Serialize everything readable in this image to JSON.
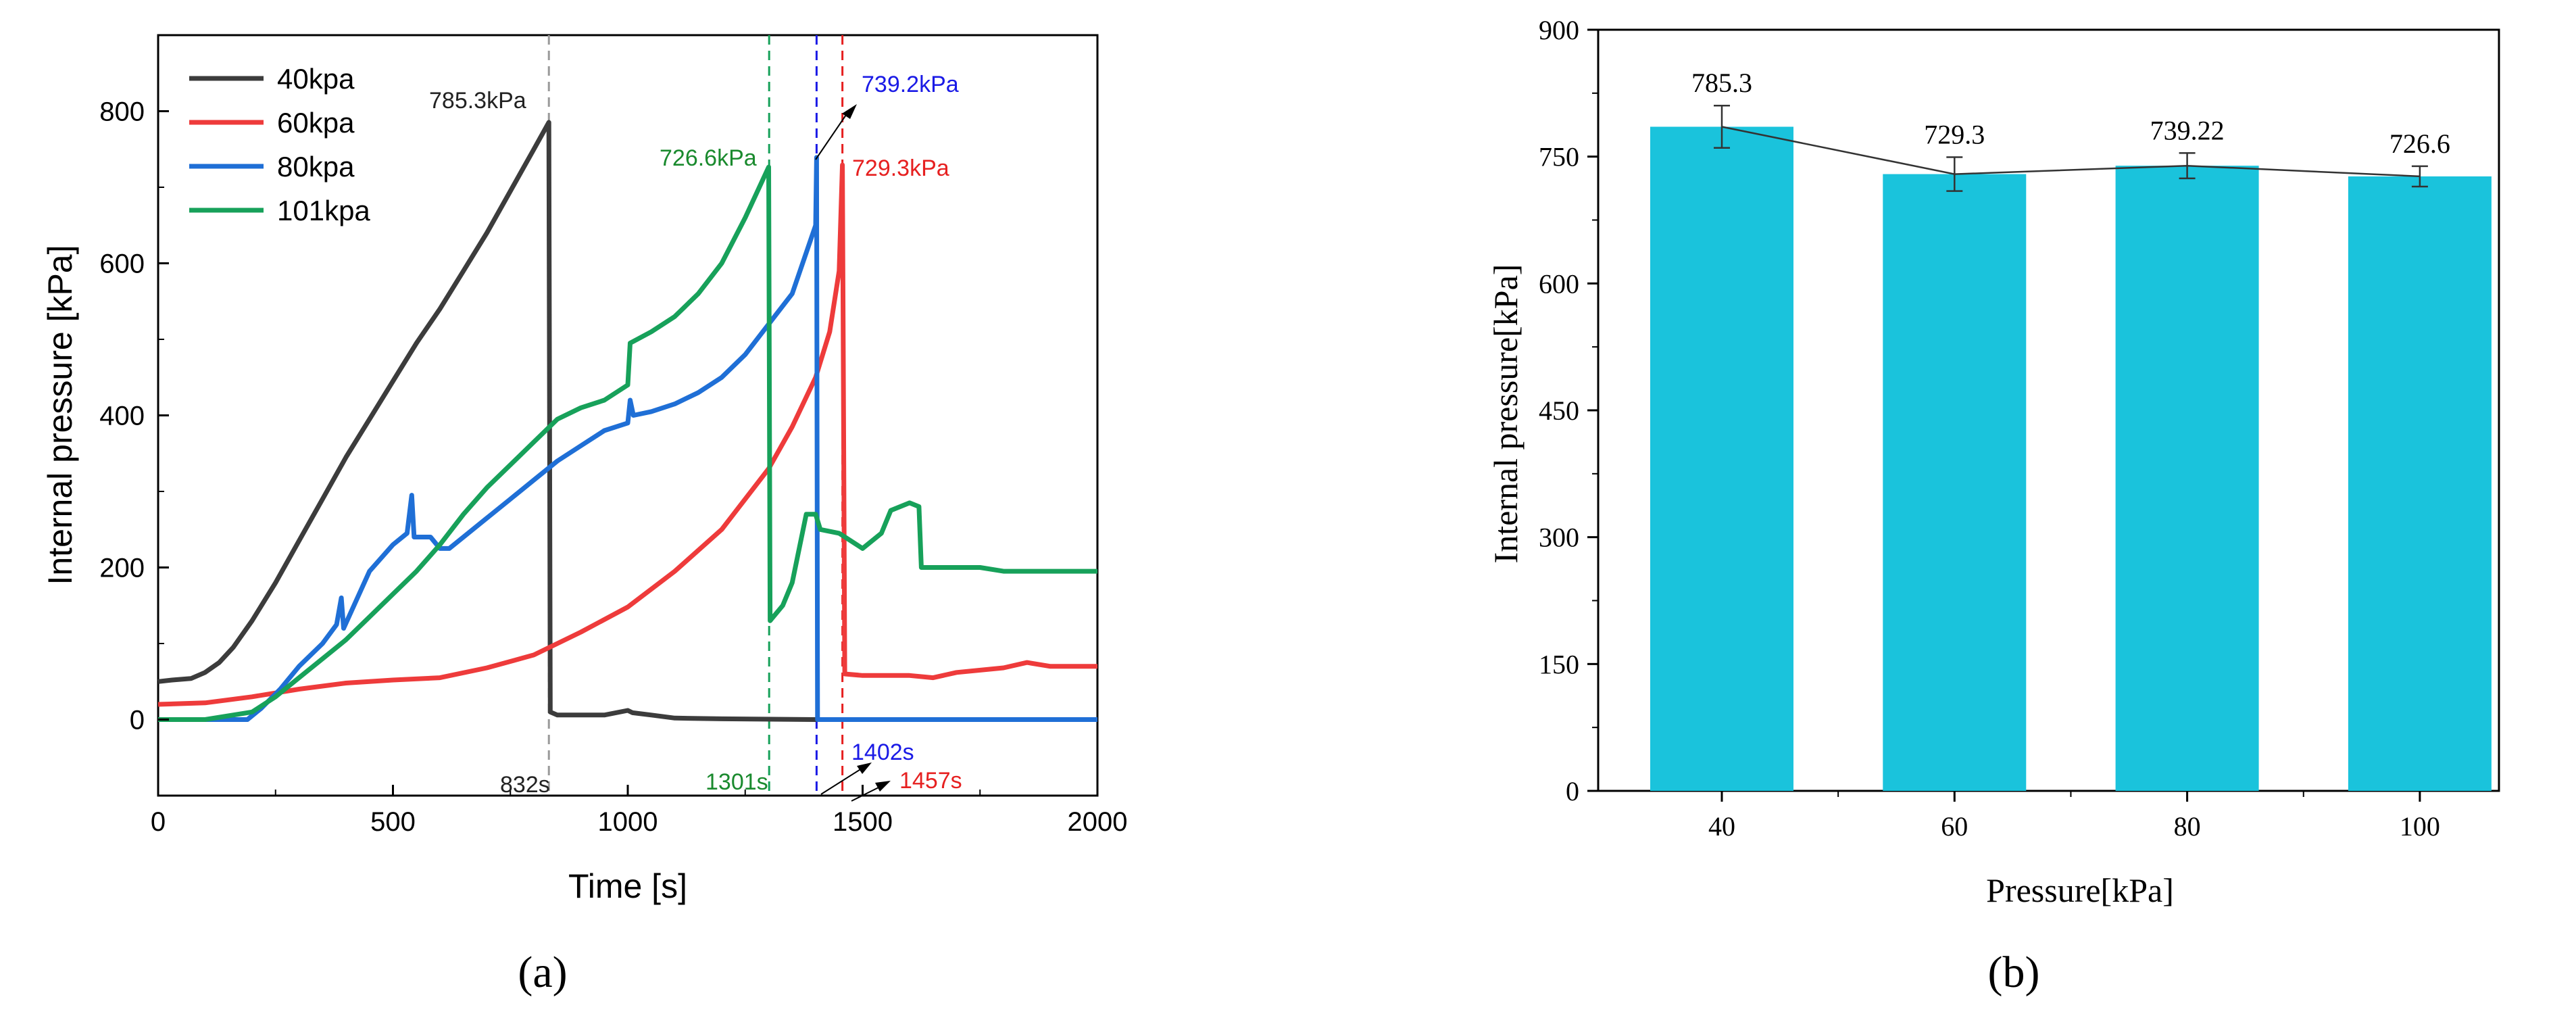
{
  "chart_data": [
    {
      "panel": "a",
      "type": "line",
      "xlabel": "Time [s]",
      "ylabel": "Internal pressure [kPa]",
      "xlim": [
        0,
        2000
      ],
      "ylim": [
        -100,
        900
      ],
      "xticks": [
        0,
        500,
        1000,
        1500,
        2000
      ],
      "yticks": [
        0,
        200,
        400,
        600,
        800
      ],
      "legend_position": "top-left",
      "series": [
        {
          "name": "40kpa",
          "color": "#3c3c3c",
          "points": [
            [
              0,
              50
            ],
            [
              30,
              52
            ],
            [
              70,
              54
            ],
            [
              100,
              62
            ],
            [
              130,
              75
            ],
            [
              160,
              95
            ],
            [
              200,
              130
            ],
            [
              250,
              180
            ],
            [
              300,
              235
            ],
            [
              350,
              290
            ],
            [
              400,
              345
            ],
            [
              450,
              395
            ],
            [
              500,
              445
            ],
            [
              550,
              495
            ],
            [
              600,
              540
            ],
            [
              650,
              590
            ],
            [
              700,
              640
            ],
            [
              750,
              695
            ],
            [
              800,
              750
            ],
            [
              832,
              785.3
            ],
            [
              835,
              10
            ],
            [
              850,
              6
            ],
            [
              900,
              6
            ],
            [
              950,
              6
            ],
            [
              1000,
              12
            ],
            [
              1010,
              9
            ],
            [
              1050,
              6
            ],
            [
              1100,
              2
            ],
            [
              1200,
              1
            ],
            [
              1400,
              0
            ],
            [
              2000,
              0
            ]
          ]
        },
        {
          "name": "60kpa",
          "color": "#ee3b3b",
          "points": [
            [
              0,
              20
            ],
            [
              100,
              22
            ],
            [
              200,
              30
            ],
            [
              300,
              40
            ],
            [
              400,
              48
            ],
            [
              500,
              52
            ],
            [
              600,
              55
            ],
            [
              700,
              68
            ],
            [
              800,
              85
            ],
            [
              850,
              100
            ],
            [
              900,
              115
            ],
            [
              1000,
              148
            ],
            [
              1100,
              195
            ],
            [
              1200,
              250
            ],
            [
              1300,
              330
            ],
            [
              1350,
              385
            ],
            [
              1400,
              450
            ],
            [
              1430,
              510
            ],
            [
              1450,
              590
            ],
            [
              1457,
              729.3
            ],
            [
              1462,
              60
            ],
            [
              1500,
              58
            ],
            [
              1600,
              58
            ],
            [
              1650,
              55
            ],
            [
              1700,
              62
            ],
            [
              1800,
              68
            ],
            [
              1850,
              75
            ],
            [
              1900,
              70
            ],
            [
              2000,
              70
            ]
          ]
        },
        {
          "name": "80kpa",
          "color": "#1f6fd6",
          "points": [
            [
              0,
              0
            ],
            [
              100,
              0
            ],
            [
              190,
              0
            ],
            [
              220,
              15
            ],
            [
              260,
              40
            ],
            [
              300,
              70
            ],
            [
              350,
              100
            ],
            [
              380,
              125
            ],
            [
              390,
              160
            ],
            [
              395,
              120
            ],
            [
              450,
              195
            ],
            [
              500,
              230
            ],
            [
              530,
              245
            ],
            [
              540,
              295
            ],
            [
              545,
              240
            ],
            [
              580,
              240
            ],
            [
              600,
              225
            ],
            [
              620,
              225
            ],
            [
              650,
              240
            ],
            [
              700,
              265
            ],
            [
              750,
              290
            ],
            [
              800,
              315
            ],
            [
              850,
              340
            ],
            [
              900,
              360
            ],
            [
              950,
              380
            ],
            [
              1000,
              390
            ],
            [
              1005,
              420
            ],
            [
              1012,
              400
            ],
            [
              1050,
              405
            ],
            [
              1100,
              415
            ],
            [
              1150,
              430
            ],
            [
              1200,
              450
            ],
            [
              1250,
              480
            ],
            [
              1300,
              520
            ],
            [
              1350,
              560
            ],
            [
              1400,
              650
            ],
            [
              1402,
              739.2
            ],
            [
              1404,
              0
            ],
            [
              1500,
              0
            ],
            [
              2000,
              0
            ]
          ]
        },
        {
          "name": "101kpa",
          "color": "#17a15a",
          "points": [
            [
              0,
              0
            ],
            [
              100,
              0
            ],
            [
              200,
              10
            ],
            [
              250,
              30
            ],
            [
              300,
              55
            ],
            [
              350,
              80
            ],
            [
              400,
              105
            ],
            [
              450,
              135
            ],
            [
              500,
              165
            ],
            [
              550,
              195
            ],
            [
              600,
              230
            ],
            [
              650,
              270
            ],
            [
              700,
              305
            ],
            [
              750,
              335
            ],
            [
              800,
              365
            ],
            [
              850,
              395
            ],
            [
              900,
              410
            ],
            [
              950,
              420
            ],
            [
              1000,
              440
            ],
            [
              1005,
              495
            ],
            [
              1050,
              510
            ],
            [
              1100,
              530
            ],
            [
              1150,
              560
            ],
            [
              1200,
              600
            ],
            [
              1250,
              660
            ],
            [
              1300,
              726.6
            ],
            [
              1303,
              130
            ],
            [
              1330,
              150
            ],
            [
              1350,
              180
            ],
            [
              1380,
              270
            ],
            [
              1400,
              270
            ],
            [
              1410,
              250
            ],
            [
              1450,
              245
            ],
            [
              1500,
              225
            ],
            [
              1540,
              245
            ],
            [
              1560,
              275
            ],
            [
              1600,
              285
            ],
            [
              1620,
              280
            ],
            [
              1625,
              200
            ],
            [
              1700,
              200
            ],
            [
              1750,
              200
            ],
            [
              1800,
              195
            ],
            [
              2000,
              195
            ]
          ]
        }
      ],
      "vlines": [
        {
          "x": 832,
          "color": "#9a9a9a"
        },
        {
          "x": 1301,
          "color": "#17a15a"
        },
        {
          "x": 1402,
          "color": "#1a1ae6"
        },
        {
          "x": 1457,
          "color": "#e62020"
        }
      ],
      "annotations": [
        {
          "text": "785.3kPa",
          "color": "#222222"
        },
        {
          "text": "726.6kPa",
          "color": "#1a8a2e"
        },
        {
          "text": "739.2kPa",
          "color": "#1a1ae6"
        },
        {
          "text": "729.3kPa",
          "color": "#e62020"
        },
        {
          "text": "832s",
          "color": "#222222"
        },
        {
          "text": "1301s",
          "color": "#1a8a2e"
        },
        {
          "text": "1402s",
          "color": "#1a1ae6"
        },
        {
          "text": "1457s",
          "color": "#e62020"
        }
      ]
    },
    {
      "panel": "b",
      "type": "bar",
      "xlabel": "Pressure[kPa]",
      "ylabel": "Internal pressure[kPa]",
      "categories": [
        "40",
        "60",
        "80",
        "100"
      ],
      "values": [
        785.3,
        729.3,
        739.22,
        726.6
      ],
      "value_labels": [
        "785.3",
        "729.3",
        "739.22",
        "726.6"
      ],
      "errors": [
        25,
        20,
        15,
        12
      ],
      "ylim": [
        0,
        900
      ],
      "yticks": [
        0,
        150,
        300,
        450,
        600,
        750,
        900
      ],
      "bar_color": "#1ac3dc"
    }
  ],
  "captions": {
    "a": "(a)",
    "b": "(b)"
  }
}
